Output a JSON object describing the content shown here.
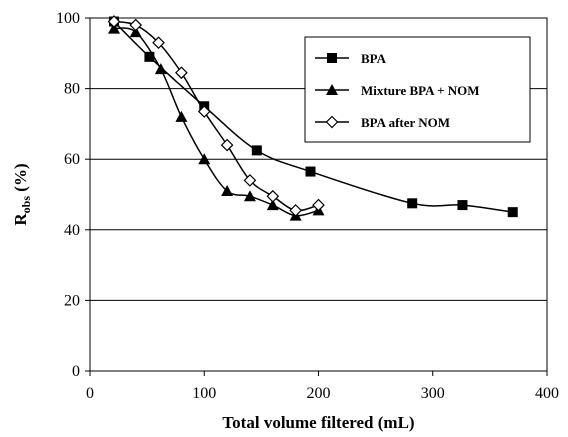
{
  "chart_data": {
    "type": "line",
    "title": "",
    "xlabel": "Total volume filtered (mL)",
    "ylabel": {
      "main": "R",
      "sub": "obs",
      "rest": " (%)"
    },
    "xlim": [
      0,
      400
    ],
    "ylim": [
      0,
      100
    ],
    "xticks": [
      "0",
      "100",
      "200",
      "300",
      "400"
    ],
    "yticks": [
      "0",
      "20",
      "40",
      "60",
      "80",
      "100"
    ],
    "grid": "horizontal",
    "legend_position": "top-right",
    "series": [
      {
        "name": "BPA",
        "marker": "filled-square",
        "color": "#000000",
        "points": [
          [
            21,
            99
          ],
          [
            52,
            89
          ],
          [
            100,
            75
          ],
          [
            146,
            62.5
          ],
          [
            193,
            56.5
          ],
          [
            282,
            47.5
          ],
          [
            326,
            47
          ],
          [
            370,
            45
          ]
        ]
      },
      {
        "name": "Mixture BPA + NOM",
        "marker": "filled-triangle",
        "color": "#000000",
        "points": [
          [
            21,
            97
          ],
          [
            40,
            96
          ],
          [
            62,
            85.5
          ],
          [
            80,
            72
          ],
          [
            100,
            60
          ],
          [
            120,
            51
          ],
          [
            140,
            49.5
          ],
          [
            160,
            47
          ],
          [
            180,
            44
          ],
          [
            200,
            45.5
          ]
        ]
      },
      {
        "name": "BPA after NOM",
        "marker": "open-diamond",
        "color": "#000000",
        "points": [
          [
            21,
            99
          ],
          [
            40,
            98
          ],
          [
            60,
            93
          ],
          [
            80,
            84.5
          ],
          [
            100,
            73.5
          ],
          [
            120,
            64
          ],
          [
            140,
            54
          ],
          [
            160,
            49.5
          ],
          [
            180,
            45.5
          ],
          [
            200,
            47
          ]
        ]
      }
    ]
  }
}
